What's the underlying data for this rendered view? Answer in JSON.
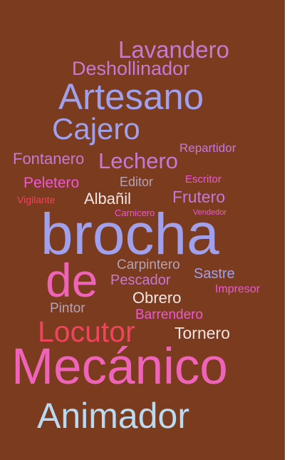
{
  "words": {
    "lavandero": "Lavandero",
    "deshollinador": "Deshollinador",
    "artesano": "Artesano",
    "cajero": "Cajero",
    "repartidor": "Repartidor",
    "fontanero": "Fontanero",
    "lechero": "Lechero",
    "peletero": "Peletero",
    "editor": "Editor",
    "escritor": "Escritor",
    "vigilante": "Vigilante",
    "albanil": "Albañil",
    "frutero": "Frutero",
    "carnicero": "Carnicero",
    "vendedor": "Vendedor",
    "brocha": "brocha",
    "de": "de",
    "carpintero": "Carpintero",
    "pescador": "Pescador",
    "sastre": "Sastre",
    "impresor": "Impresor",
    "obrero": "Obrero",
    "pintor": "Pintor",
    "barrendero": "Barrendero",
    "locutor": "Locutor",
    "tornero": "Tornero",
    "mecanico": "Mecánico",
    "animador": "Animador"
  },
  "colors": {
    "background": "#7a3b1e",
    "lavender": "#c98adf",
    "periwinkle": "#a0a0ec",
    "pink": "#ef63b8",
    "rose": "#f1425e",
    "white": "#f4e4e2",
    "orchid": "#ee58d6",
    "plum": "#c57bd3",
    "gray": "#b7a3b5",
    "paleblue": "#b9daf0"
  }
}
